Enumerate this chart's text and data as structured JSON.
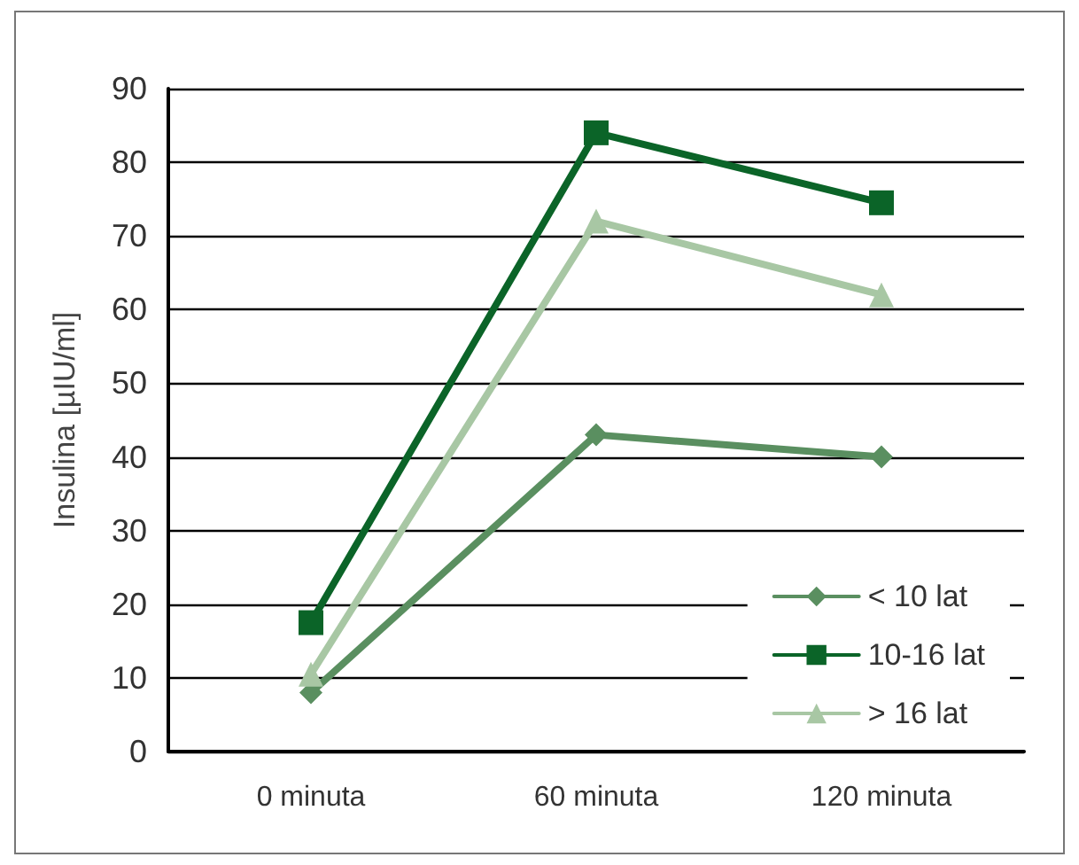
{
  "chart_data": {
    "type": "line",
    "ylabel": "Insulina [µIU/ml]",
    "categories": [
      "0 minuta",
      "60 minuta",
      "120 minuta"
    ],
    "series": [
      {
        "name": "< 10 lat",
        "color": "#5a8f60",
        "marker": "diamond",
        "values": [
          8,
          43,
          40
        ]
      },
      {
        "name": "10-16 lat",
        "color": "#0b6428",
        "marker": "square",
        "values": [
          17.5,
          84,
          74.5
        ]
      },
      {
        "name": "> 16 lat",
        "color": "#a8c7a4",
        "marker": "triangle",
        "values": [
          10.5,
          72,
          62
        ]
      }
    ],
    "ylim": [
      0,
      90
    ],
    "yticks": [
      0,
      10,
      20,
      30,
      40,
      50,
      60,
      70,
      80,
      90
    ],
    "grid": "y",
    "legend": "bottom right",
    "line_style": "solid"
  }
}
